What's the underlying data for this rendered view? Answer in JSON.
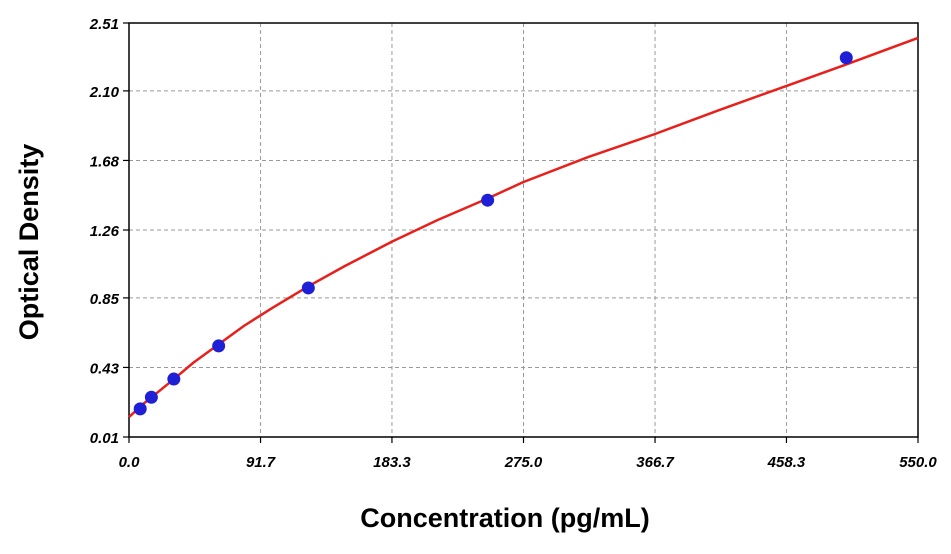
{
  "chart_data": {
    "type": "scatter",
    "title": "",
    "xlabel": "Concentration (pg/mL)",
    "ylabel": "Optical Density",
    "xlim": [
      0,
      550
    ],
    "ylim": [
      0.01,
      2.51
    ],
    "x_ticks": [
      "0.0",
      "91.7",
      "183.3",
      "275.0",
      "366.7",
      "458.3",
      "550.0"
    ],
    "y_ticks": [
      "0.01",
      "0.43",
      "0.85",
      "1.26",
      "1.68",
      "2.10",
      "2.51"
    ],
    "grid": true,
    "series": [
      {
        "type": "scatter",
        "color": "#1f1fd6",
        "points": [
          {
            "x": 7.8,
            "y": 0.18
          },
          {
            "x": 15.6,
            "y": 0.25
          },
          {
            "x": 31.25,
            "y": 0.36
          },
          {
            "x": 62.5,
            "y": 0.56
          },
          {
            "x": 125,
            "y": 0.91
          },
          {
            "x": 250,
            "y": 1.44
          },
          {
            "x": 500,
            "y": 2.3
          }
        ]
      },
      {
        "type": "line",
        "color": "#e8201c",
        "x": [
          0,
          10,
          20,
          30,
          45,
          62.5,
          80,
          100,
          125,
          150,
          183.3,
          215,
          250,
          275,
          320,
          366.7,
          410,
          458.3,
          500,
          550
        ],
        "y": [
          0.13,
          0.21,
          0.28,
          0.35,
          0.46,
          0.57,
          0.68,
          0.79,
          0.92,
          1.04,
          1.19,
          1.32,
          1.45,
          1.55,
          1.7,
          1.84,
          1.98,
          2.13,
          2.26,
          2.42
        ]
      }
    ]
  }
}
